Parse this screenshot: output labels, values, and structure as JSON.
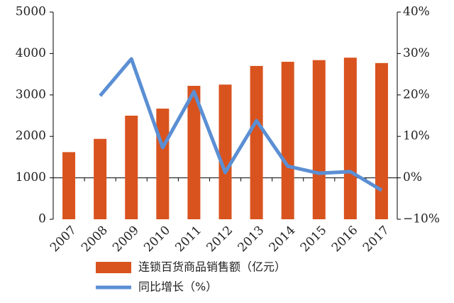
{
  "chart_data": {
    "type": "bar",
    "categories": [
      "2007",
      "2008",
      "2009",
      "2010",
      "2011",
      "2012",
      "2013",
      "2014",
      "2015",
      "2016",
      "2017"
    ],
    "series": [
      {
        "name": "连锁百货商品销售额（亿元）",
        "type": "bar",
        "color": "#d9531e",
        "values": [
          1620,
          1940,
          2500,
          2670,
          3220,
          3250,
          3700,
          3800,
          3840,
          3900,
          3770
        ]
      },
      {
        "name": "同比增长（%）",
        "type": "line",
        "axis": "y2",
        "color": "#5b8fd4",
        "values": [
          null,
          19.8,
          28.7,
          7.3,
          20.8,
          1.3,
          13.8,
          2.8,
          1.1,
          1.5,
          -3.0
        ]
      }
    ],
    "ylim": [
      0,
      5000
    ],
    "yticks": [
      0,
      1000,
      2000,
      3000,
      4000,
      5000
    ],
    "y2lim": [
      -10,
      40
    ],
    "y2ticks": [
      {
        "value": -10,
        "label": "−10%"
      },
      {
        "value": 0,
        "label": "0%"
      },
      {
        "value": 10,
        "label": "10%"
      },
      {
        "value": 20,
        "label": "20%"
      },
      {
        "value": 30,
        "label": "30%"
      },
      {
        "value": 40,
        "label": "40%"
      }
    ],
    "grid": false,
    "legend": "bottom"
  }
}
